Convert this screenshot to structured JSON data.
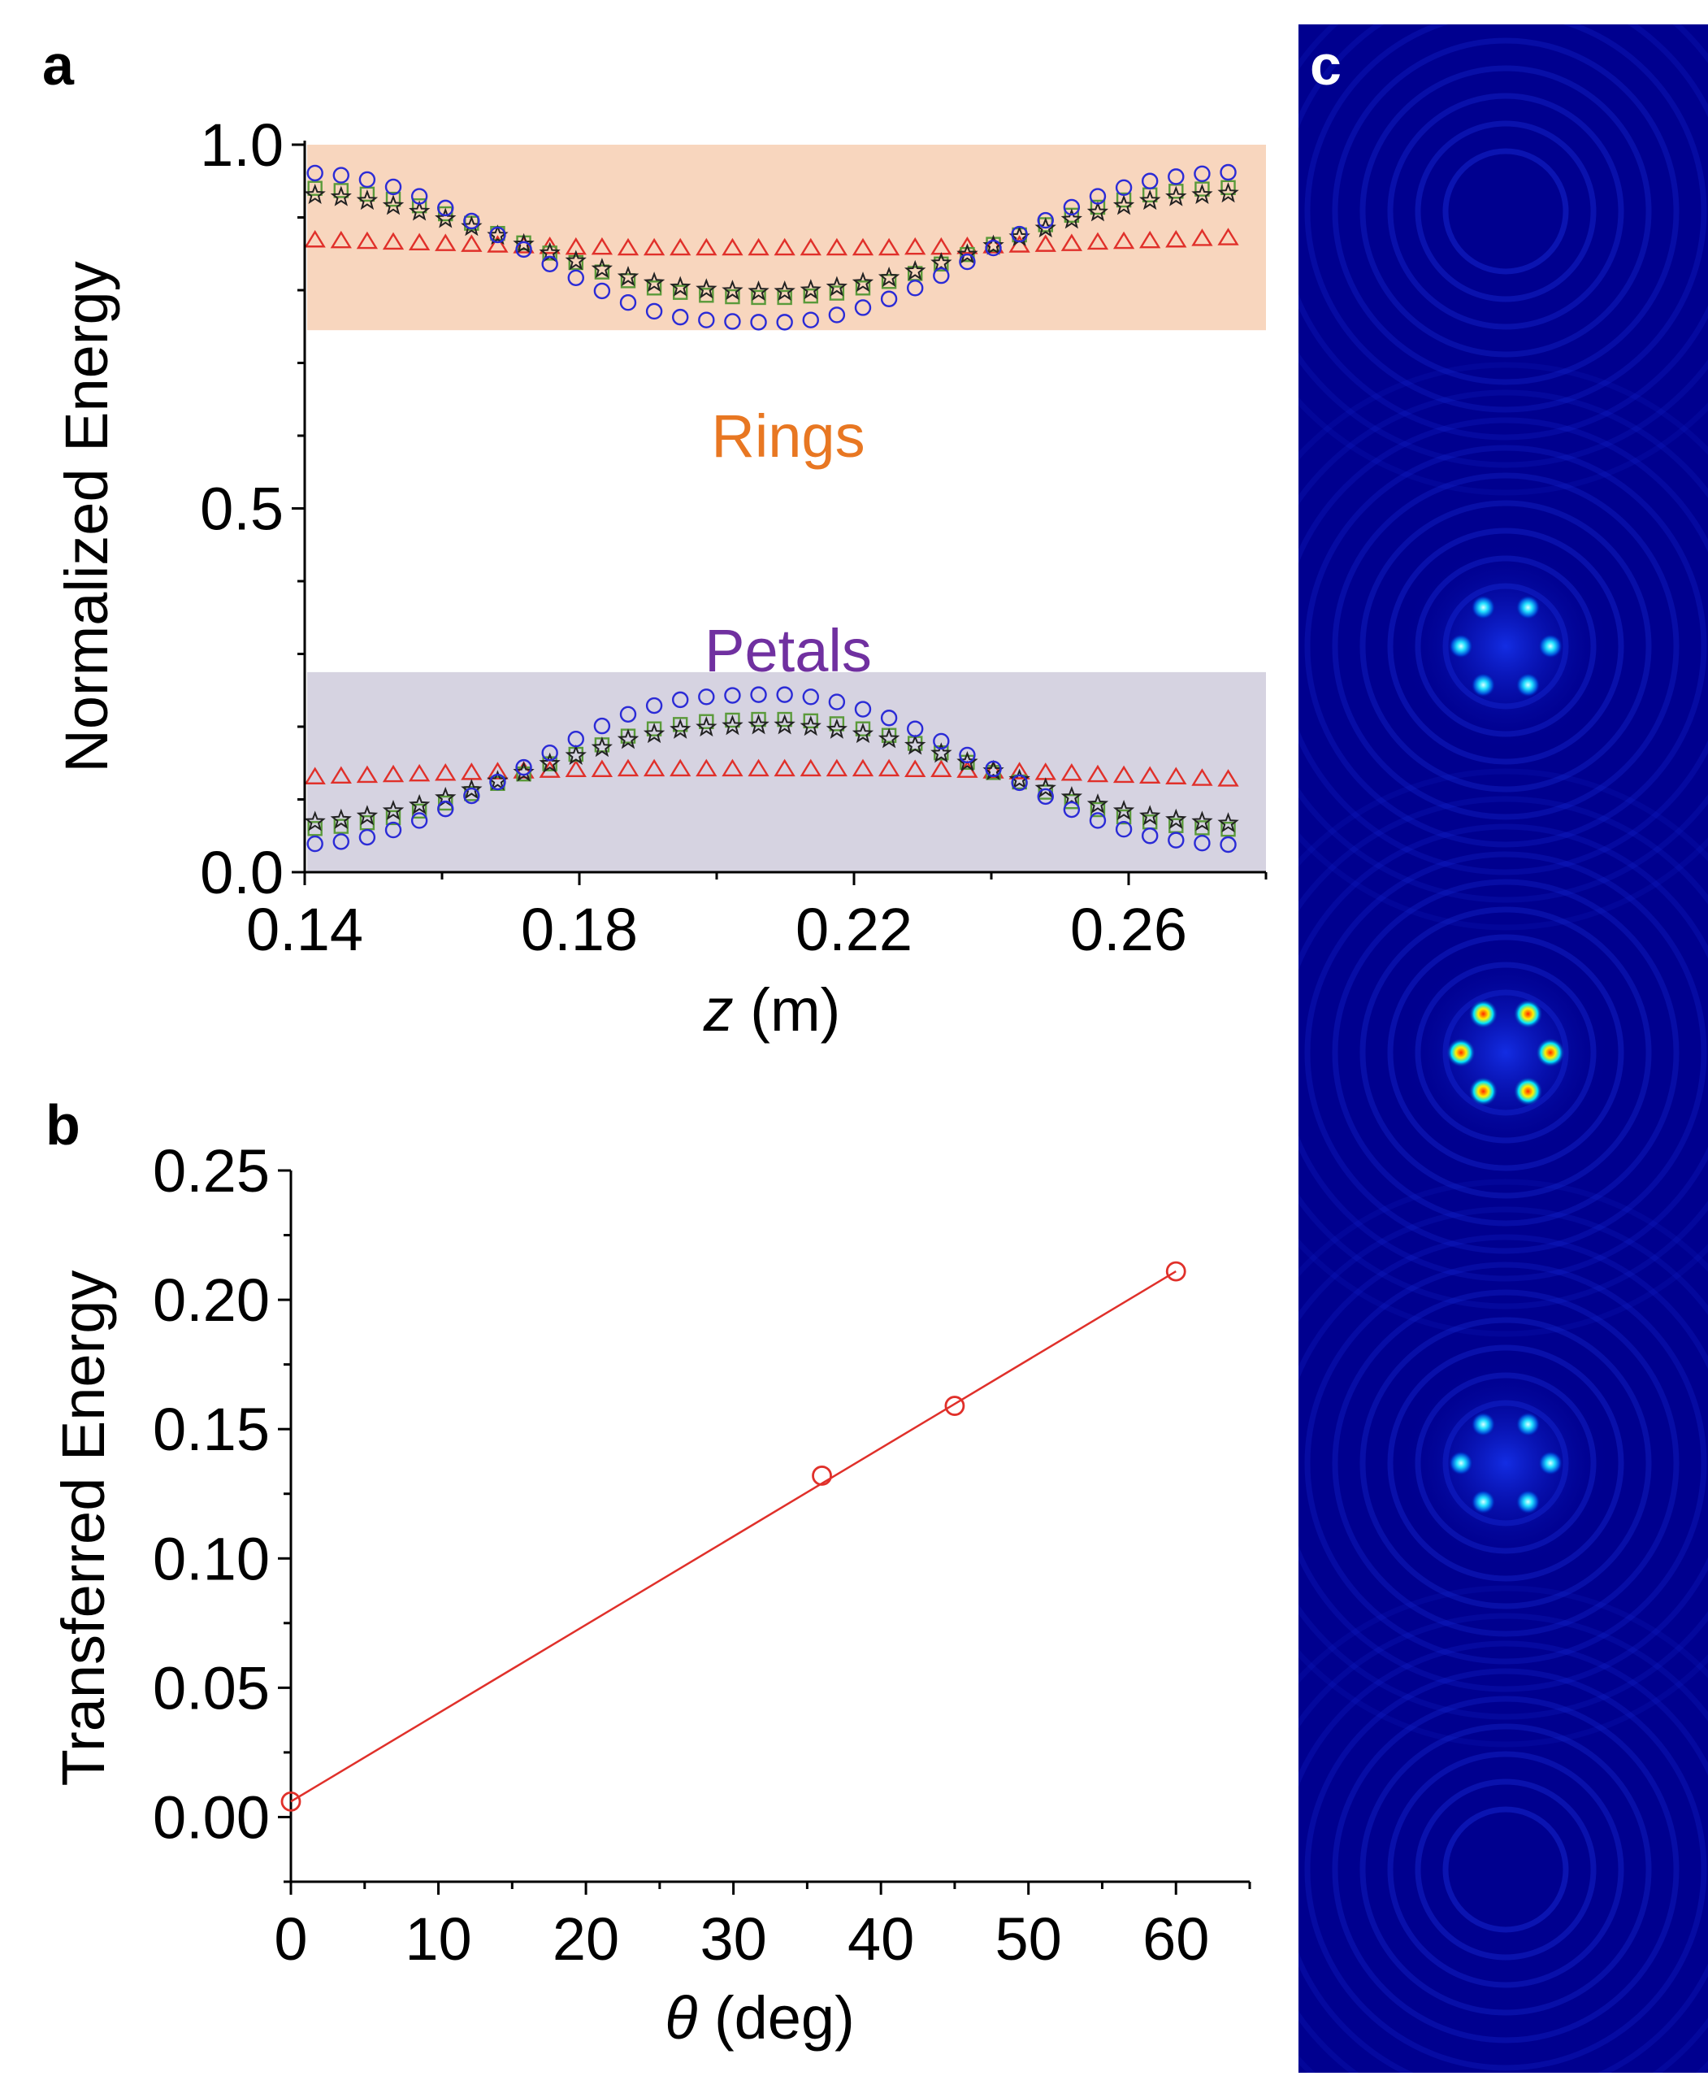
{
  "figure": {
    "panel_labels": {
      "a": "a",
      "b": "b",
      "c": "c"
    },
    "colors": {
      "rings_fill": "#f8d6be",
      "petals_fill": "#d6d3e1",
      "rings_label": "#e87722",
      "petals_label": "#7030a0",
      "series_triangle": "#e0302a",
      "series_star": "#222222",
      "series_square": "#5a9a3a",
      "series_circle": "#2b2bd6",
      "fit_line": "#e0302a",
      "map_background": "#00008f"
    }
  },
  "chart_data": [
    {
      "id": "a",
      "type": "scatter",
      "title": "",
      "xlabel": "z (m)",
      "xlabel_italic": "z",
      "xlabel_rest": " (m)",
      "ylabel": "Normalized Energy",
      "xlim": [
        0.14,
        0.28
      ],
      "ylim": [
        0.0,
        1.0
      ],
      "xticks": [
        0.14,
        0.18,
        0.22,
        0.26
      ],
      "xtick_labels": [
        "0.14",
        "0.18",
        "0.22",
        "0.26"
      ],
      "yticks": [
        0.0,
        0.5,
        1.0
      ],
      "ytick_labels": [
        "0.0",
        "0.5",
        "1.0"
      ],
      "regions": [
        {
          "name": "Rings",
          "label": "Rings",
          "y_range": [
            0.745,
            1.0
          ]
        },
        {
          "name": "Petals",
          "label": "Petals",
          "y_range": [
            0.0,
            0.275
          ]
        }
      ],
      "x": [
        0.1415,
        0.1453,
        0.1491,
        0.1529,
        0.1567,
        0.1605,
        0.1643,
        0.1681,
        0.1719,
        0.1757,
        0.1795,
        0.1833,
        0.1871,
        0.1909,
        0.1947,
        0.1985,
        0.2023,
        0.2061,
        0.2099,
        0.2137,
        0.2175,
        0.2213,
        0.2251,
        0.2289,
        0.2327,
        0.2365,
        0.2403,
        0.2441,
        0.2479,
        0.2517,
        0.2555,
        0.2593,
        0.2631,
        0.2669,
        0.2707,
        0.2745
      ],
      "series": [
        {
          "name": "rings-triangle",
          "marker": "triangle",
          "values": [
            0.869,
            0.868,
            0.867,
            0.866,
            0.865,
            0.864,
            0.863,
            0.862,
            0.861,
            0.86,
            0.859,
            0.859,
            0.858,
            0.858,
            0.858,
            0.858,
            0.858,
            0.858,
            0.858,
            0.858,
            0.858,
            0.858,
            0.858,
            0.859,
            0.859,
            0.86,
            0.861,
            0.862,
            0.863,
            0.864,
            0.866,
            0.867,
            0.868,
            0.869,
            0.871,
            0.872
          ]
        },
        {
          "name": "rings-square",
          "marker": "square",
          "values": [
            0.94,
            0.937,
            0.932,
            0.925,
            0.916,
            0.905,
            0.892,
            0.878,
            0.865,
            0.851,
            0.838,
            0.825,
            0.813,
            0.803,
            0.797,
            0.793,
            0.791,
            0.79,
            0.79,
            0.792,
            0.796,
            0.803,
            0.812,
            0.823,
            0.836,
            0.849,
            0.863,
            0.876,
            0.89,
            0.903,
            0.914,
            0.924,
            0.931,
            0.936,
            0.939,
            0.941
          ]
        },
        {
          "name": "rings-star",
          "marker": "star",
          "values": [
            0.931,
            0.928,
            0.923,
            0.916,
            0.908,
            0.898,
            0.887,
            0.875,
            0.863,
            0.851,
            0.84,
            0.829,
            0.818,
            0.81,
            0.804,
            0.801,
            0.799,
            0.798,
            0.798,
            0.8,
            0.804,
            0.81,
            0.817,
            0.826,
            0.837,
            0.849,
            0.861,
            0.873,
            0.885,
            0.897,
            0.907,
            0.916,
            0.923,
            0.928,
            0.931,
            0.933
          ]
        },
        {
          "name": "rings-circle",
          "marker": "circle",
          "values": [
            0.961,
            0.958,
            0.952,
            0.942,
            0.929,
            0.913,
            0.895,
            0.876,
            0.856,
            0.836,
            0.817,
            0.799,
            0.783,
            0.771,
            0.763,
            0.759,
            0.757,
            0.756,
            0.756,
            0.759,
            0.766,
            0.776,
            0.788,
            0.803,
            0.82,
            0.839,
            0.858,
            0.877,
            0.896,
            0.914,
            0.929,
            0.941,
            0.95,
            0.956,
            0.96,
            0.962
          ]
        },
        {
          "name": "petals-triangle",
          "marker": "triangle",
          "values": [
            0.131,
            0.132,
            0.133,
            0.134,
            0.135,
            0.136,
            0.137,
            0.138,
            0.139,
            0.14,
            0.141,
            0.141,
            0.142,
            0.142,
            0.142,
            0.142,
            0.142,
            0.142,
            0.142,
            0.142,
            0.142,
            0.142,
            0.142,
            0.141,
            0.141,
            0.14,
            0.139,
            0.138,
            0.137,
            0.136,
            0.134,
            0.133,
            0.132,
            0.131,
            0.129,
            0.128
          ]
        },
        {
          "name": "petals-square",
          "marker": "square",
          "values": [
            0.06,
            0.063,
            0.068,
            0.075,
            0.084,
            0.095,
            0.108,
            0.122,
            0.135,
            0.149,
            0.162,
            0.175,
            0.187,
            0.197,
            0.203,
            0.207,
            0.209,
            0.21,
            0.21,
            0.208,
            0.204,
            0.197,
            0.188,
            0.177,
            0.164,
            0.151,
            0.137,
            0.124,
            0.11,
            0.097,
            0.086,
            0.076,
            0.069,
            0.064,
            0.061,
            0.059
          ]
        },
        {
          "name": "petals-star",
          "marker": "star",
          "values": [
            0.069,
            0.072,
            0.077,
            0.084,
            0.092,
            0.102,
            0.113,
            0.125,
            0.137,
            0.149,
            0.16,
            0.171,
            0.182,
            0.19,
            0.196,
            0.199,
            0.201,
            0.202,
            0.202,
            0.2,
            0.196,
            0.19,
            0.183,
            0.174,
            0.163,
            0.151,
            0.139,
            0.127,
            0.115,
            0.103,
            0.093,
            0.084,
            0.077,
            0.072,
            0.069,
            0.067
          ]
        },
        {
          "name": "petals-circle",
          "marker": "circle",
          "values": [
            0.039,
            0.042,
            0.048,
            0.058,
            0.071,
            0.087,
            0.105,
            0.124,
            0.144,
            0.164,
            0.183,
            0.201,
            0.217,
            0.229,
            0.237,
            0.241,
            0.243,
            0.244,
            0.244,
            0.241,
            0.234,
            0.224,
            0.212,
            0.197,
            0.18,
            0.161,
            0.142,
            0.123,
            0.104,
            0.086,
            0.071,
            0.059,
            0.05,
            0.044,
            0.04,
            0.038
          ]
        }
      ]
    },
    {
      "id": "b",
      "type": "line",
      "title": "",
      "xlabel": "θ (deg)",
      "xlabel_italic": "θ",
      "xlabel_rest": " (deg)",
      "ylabel": "Transferred Energy",
      "xlim": [
        0,
        65
      ],
      "ylim": [
        -0.025,
        0.25
      ],
      "xticks": [
        0,
        10,
        20,
        30,
        40,
        50,
        60
      ],
      "xtick_labels": [
        "0",
        "10",
        "20",
        "30",
        "40",
        "50",
        "60"
      ],
      "yticks": [
        0.0,
        0.05,
        0.1,
        0.15,
        0.2,
        0.25
      ],
      "ytick_labels": [
        "0.00",
        "0.05",
        "0.10",
        "0.15",
        "0.20",
        "0.25"
      ],
      "points": {
        "x": [
          0,
          36,
          45,
          60
        ],
        "y": [
          0.006,
          0.132,
          0.159,
          0.211
        ]
      },
      "fit_line": {
        "x": [
          0,
          60
        ],
        "y": [
          0.006,
          0.211
        ]
      }
    }
  ],
  "intensity_maps": [
    {
      "id": "c-top",
      "pattern": "faint-rings"
    },
    {
      "id": "c-petals-1",
      "pattern": "six-petals",
      "intensity": "medium"
    },
    {
      "id": "c-petals-2",
      "pattern": "six-petals",
      "intensity": "high"
    },
    {
      "id": "c-petals-3",
      "pattern": "six-petals",
      "intensity": "medium"
    },
    {
      "id": "c-bottom",
      "pattern": "faint-rings"
    }
  ]
}
